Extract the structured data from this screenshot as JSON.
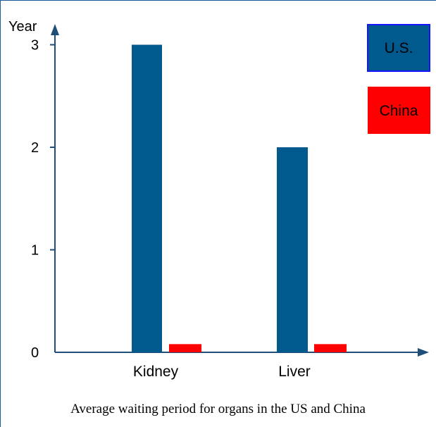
{
  "caption": "Average waiting period for organs in the US and China",
  "colors": {
    "axis": "#1f4e79",
    "us": "#005a8e",
    "us_legend_border": "#1515ff",
    "china": "#ff0000"
  },
  "chart_data": {
    "type": "bar",
    "ylabel": "Year",
    "xlabel": "",
    "ylim": [
      0,
      3
    ],
    "yticks": [
      0,
      1,
      2,
      3
    ],
    "categories": [
      "Kidney",
      "Liver"
    ],
    "series": [
      {
        "name": "U.S.",
        "values": [
          3,
          2
        ]
      },
      {
        "name": "China",
        "values": [
          0.08,
          0.08
        ]
      }
    ],
    "legend_position": "top-right",
    "grid": false
  }
}
